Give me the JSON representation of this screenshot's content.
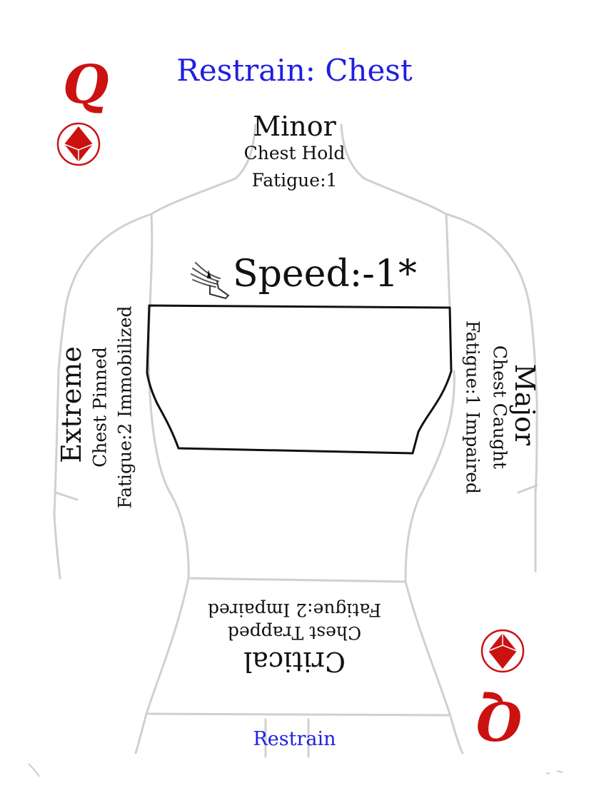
{
  "card": {
    "title": "Restrain: Chest",
    "rank": "Q",
    "suit_icon": "diamond-icon",
    "speed_icon": "winged-boot-icon",
    "colors": {
      "title": "#1f1fe0",
      "rank": "#cc1111",
      "outline": "#d0d0d0",
      "text": "#111111"
    }
  },
  "minor": {
    "heading": "Minor",
    "line1": "Chest Hold",
    "line2": "Fatigue:1"
  },
  "speed": {
    "text": "Speed:-1*"
  },
  "extreme": {
    "heading": "Extreme",
    "line1": "Chest Pinned",
    "line2": "Fatigue:2 Immobilized"
  },
  "major": {
    "heading": "Major",
    "line1": "Chest Caught",
    "line2": "Fatigue:1 Impaired"
  },
  "critical": {
    "heading": "Critical",
    "line1": "Chest Trapped",
    "line2": "Fatigue:2 Impaired"
  },
  "footer": {
    "label": "Restrain"
  }
}
